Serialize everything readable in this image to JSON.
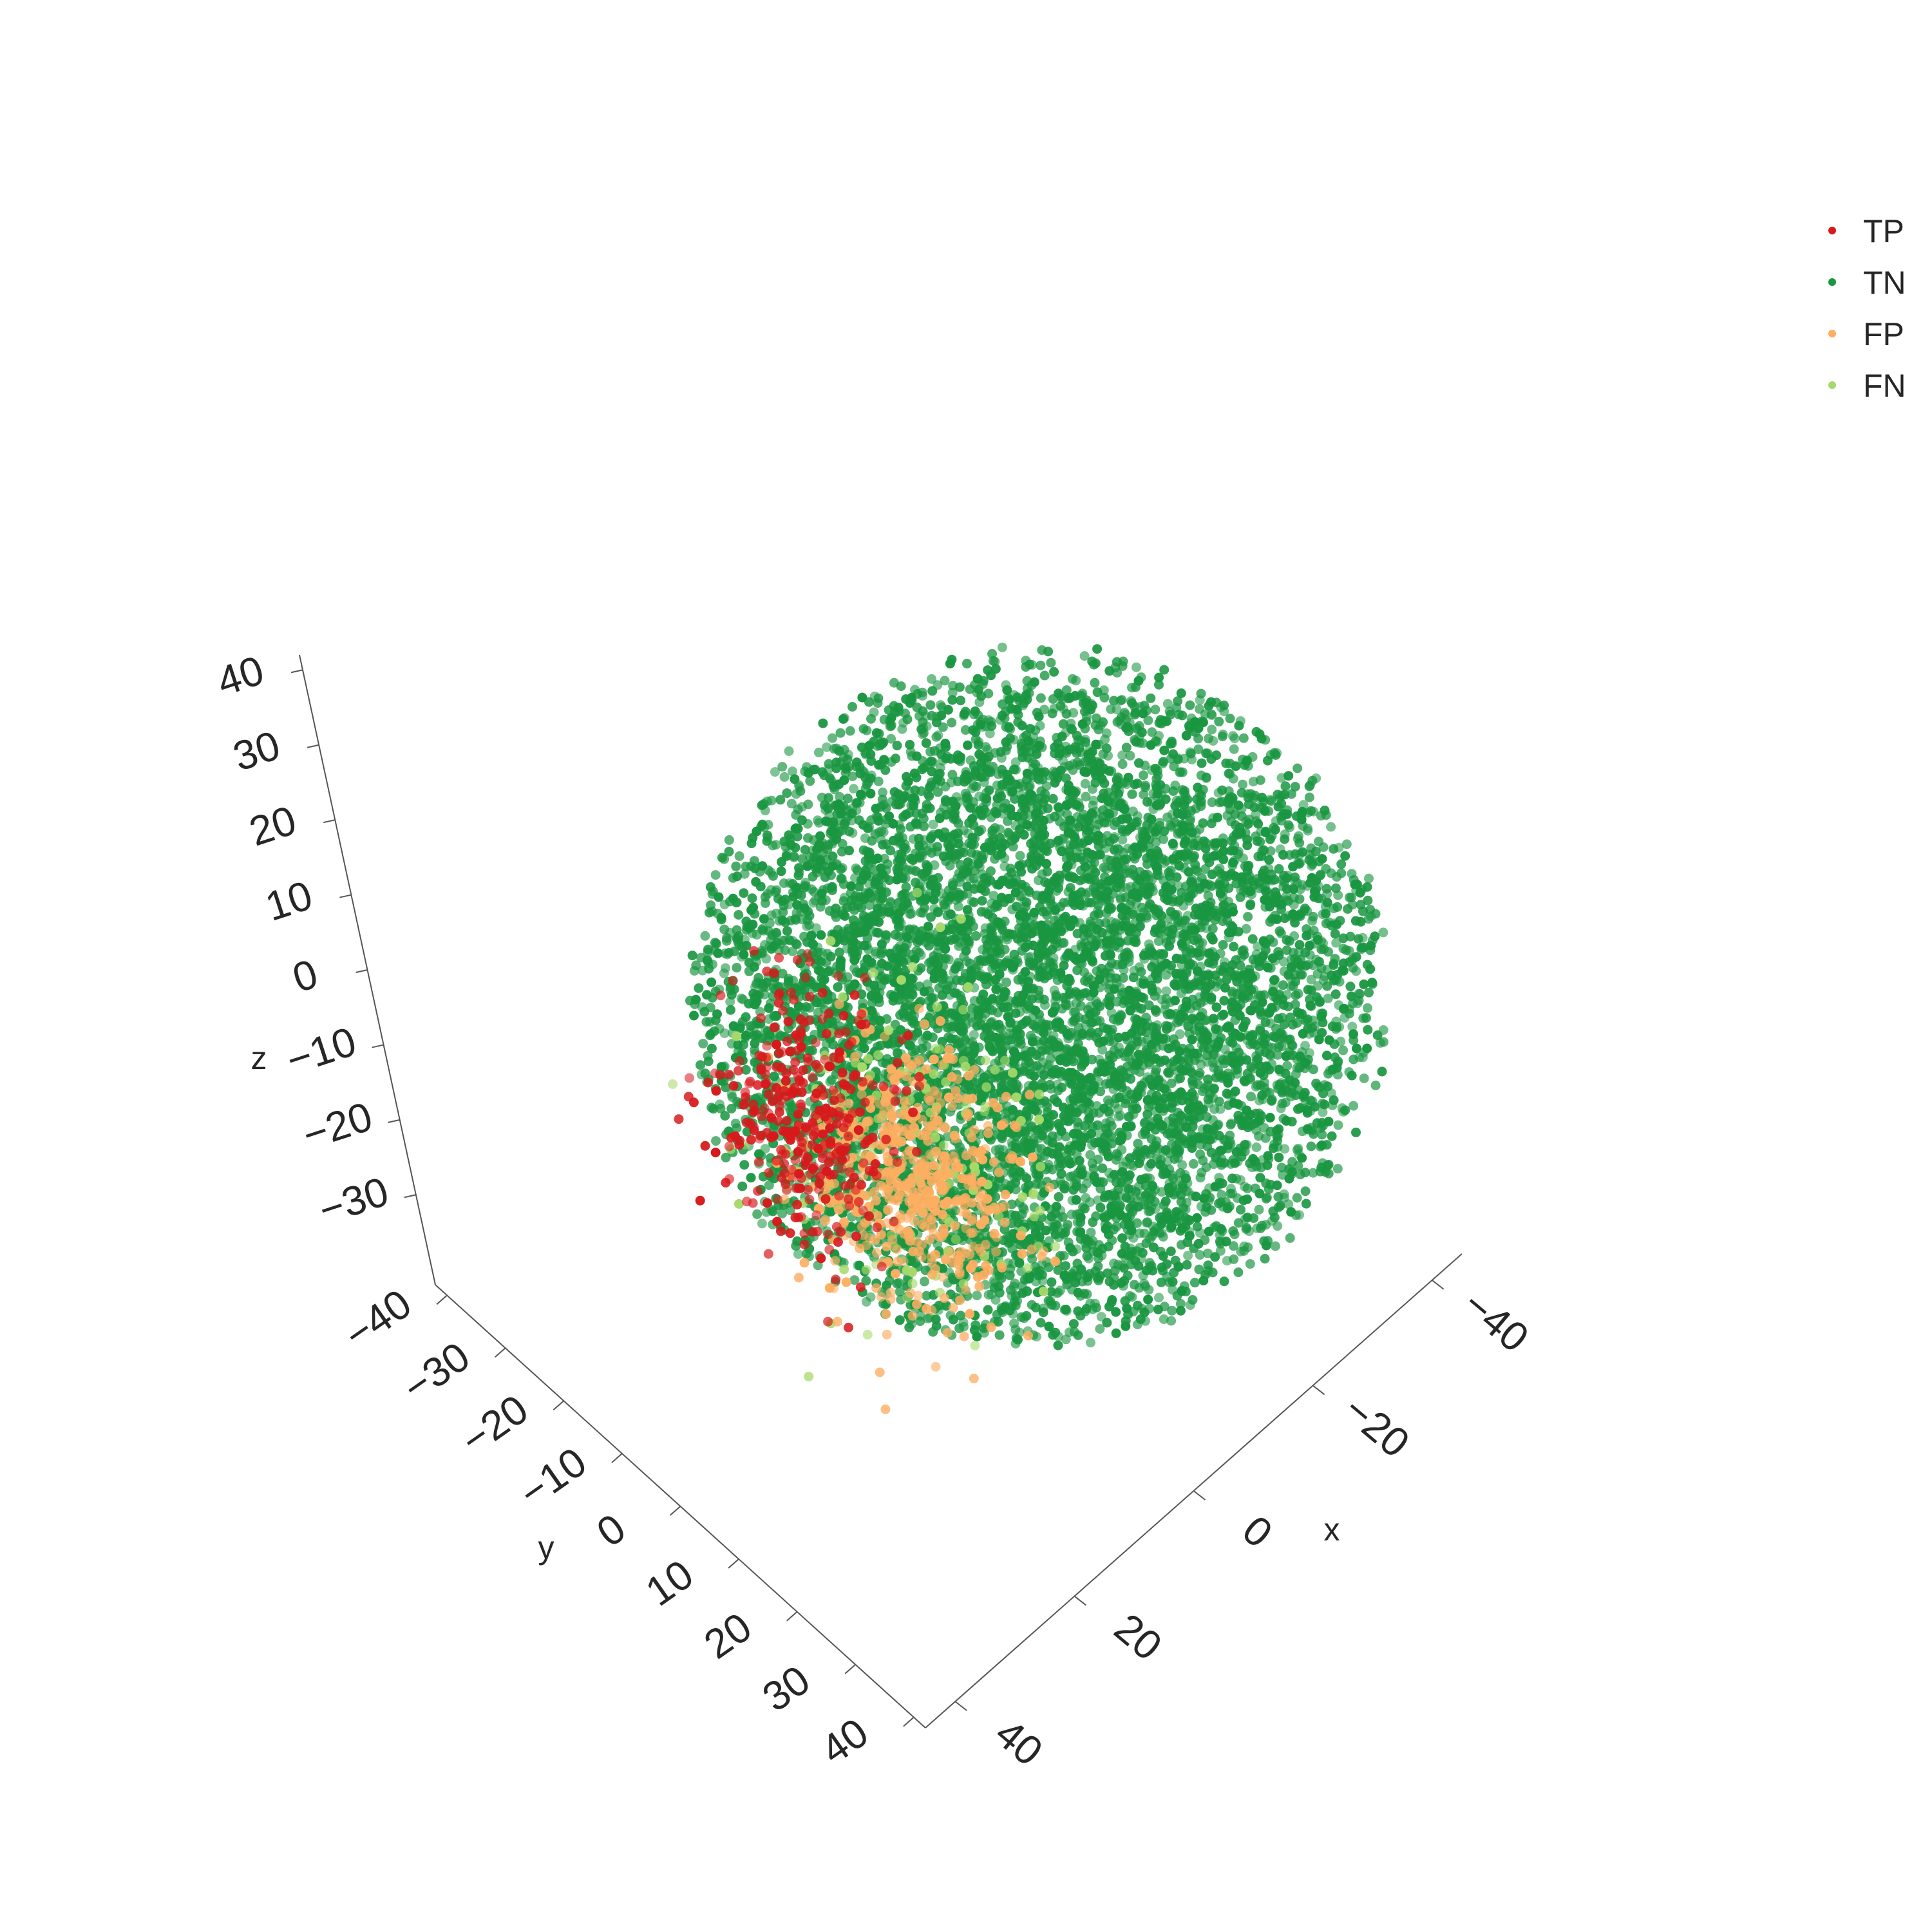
{
  "chart_data": {
    "type": "scatter",
    "projection": "3d",
    "title": "",
    "axes": {
      "x": {
        "label": "x",
        "range": [
          -45,
          45
        ],
        "ticks": [
          -40,
          -20,
          0,
          20,
          40
        ],
        "tick_labels": [
          "−40",
          "−20",
          "0",
          "20",
          "40"
        ]
      },
      "y": {
        "label": "y",
        "range": [
          -42,
          42
        ],
        "ticks": [
          -40,
          -30,
          -20,
          -10,
          0,
          10,
          20,
          30,
          40
        ],
        "tick_labels": [
          "−40",
          "−30",
          "−20",
          "−10",
          "0",
          "10",
          "20",
          "30",
          "40"
        ]
      },
      "z": {
        "label": "z",
        "range": [
          -42,
          42
        ],
        "ticks": [
          -30,
          -20,
          -10,
          0,
          10,
          20,
          30,
          40
        ],
        "tick_labels": [
          "−30",
          "−20",
          "−10",
          "0",
          "10",
          "20",
          "30",
          "40"
        ]
      }
    },
    "grid": false,
    "legend_position": "top-right",
    "series": [
      {
        "name": "TP",
        "color": "#d7191c",
        "approx_points": 330,
        "cluster": {
          "center": [
            32,
            0,
            -5
          ],
          "spread": [
            6,
            12,
            14
          ]
        }
      },
      {
        "name": "TN",
        "color": "#1a9641",
        "approx_points": 7400,
        "cluster": {
          "center": [
            0,
            0,
            0
          ],
          "spread": [
            40,
            40,
            40
          ]
        }
      },
      {
        "name": "FP",
        "color": "#fdae61",
        "approx_points": 520,
        "cluster": {
          "center": [
            25,
            10,
            -10
          ],
          "spread": [
            8,
            12,
            13
          ]
        }
      },
      {
        "name": "FN",
        "color": "#a6d96a",
        "approx_points": 150,
        "cluster": {
          "center": [
            20,
            5,
            -8
          ],
          "spread": [
            12,
            16,
            18
          ]
        }
      }
    ]
  }
}
